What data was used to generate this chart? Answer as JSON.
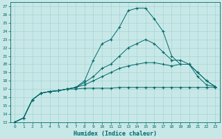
{
  "xlabel": "Humidex (Indice chaleur)",
  "bg_color": "#c8e8e8",
  "grid_color": "#9ecece",
  "line_color": "#006868",
  "xlim": [
    -0.5,
    23.5
  ],
  "ylim": [
    13,
    27.5
  ],
  "yticks": [
    13,
    14,
    15,
    16,
    17,
    18,
    19,
    20,
    21,
    22,
    23,
    24,
    25,
    26,
    27
  ],
  "xticks": [
    0,
    1,
    2,
    3,
    4,
    5,
    6,
    7,
    8,
    9,
    10,
    11,
    12,
    13,
    14,
    15,
    16,
    17,
    18,
    19,
    20,
    21,
    22,
    23
  ],
  "y_main": [
    13,
    13.5,
    15.7,
    16.5,
    16.7,
    16.8,
    17.0,
    17.2,
    18.0,
    20.5,
    22.5,
    23.0,
    24.5,
    26.5,
    26.8,
    26.8,
    25.5,
    24.0,
    21.0,
    20.0,
    20.0,
    18.5,
    17.5,
    17.3
  ],
  "y_flat": [
    13,
    13.5,
    15.7,
    16.5,
    16.7,
    16.8,
    17.0,
    17.0,
    17.1,
    17.1,
    17.1,
    17.1,
    17.2,
    17.2,
    17.2,
    17.2,
    17.2,
    17.2,
    17.2,
    17.2,
    17.2,
    17.2,
    17.2,
    17.2
  ],
  "y_mid1": [
    13,
    13.5,
    15.7,
    16.5,
    16.7,
    16.8,
    17.0,
    17.2,
    17.5,
    18.0,
    18.5,
    19.0,
    19.5,
    19.8,
    20.0,
    20.2,
    20.2,
    20.0,
    19.8,
    20.0,
    20.0,
    19.0,
    18.0,
    17.3
  ],
  "y_mid2": [
    13,
    13.5,
    15.7,
    16.5,
    16.7,
    16.8,
    17.0,
    17.2,
    17.8,
    18.5,
    19.5,
    20.0,
    21.0,
    22.0,
    22.5,
    23.0,
    22.5,
    21.5,
    20.5,
    20.5,
    20.0,
    19.0,
    18.0,
    17.3
  ]
}
